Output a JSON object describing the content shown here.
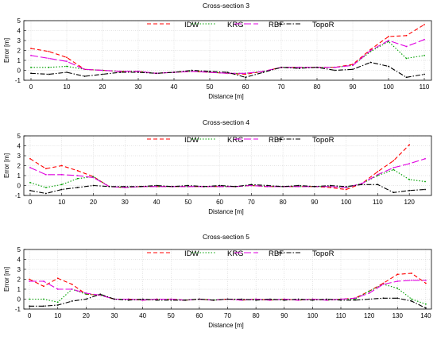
{
  "chart_data": [
    {
      "type": "line",
      "title": "Cross-section 3",
      "xlabel": "Distance [m]",
      "ylabel": "Error [m]",
      "xlim": [
        -2,
        112
      ],
      "ylim": [
        -1,
        5
      ],
      "xticks": [
        0,
        10,
        20,
        30,
        40,
        50,
        60,
        70,
        80,
        90,
        100,
        110
      ],
      "yticks": [
        -1,
        0,
        1,
        2,
        3,
        4,
        5
      ],
      "grid": true,
      "legend": "top-center",
      "x": [
        0,
        5,
        10,
        15,
        20,
        25,
        30,
        35,
        40,
        45,
        50,
        55,
        60,
        65,
        70,
        75,
        80,
        85,
        90,
        95,
        100,
        105,
        110
      ],
      "series": [
        {
          "name": "IDW",
          "color": "#ff0000",
          "dash": "5,3",
          "values": [
            2.2,
            1.9,
            1.3,
            0.1,
            0.0,
            -0.1,
            -0.1,
            -0.3,
            -0.2,
            -0.1,
            -0.2,
            -0.3,
            -0.4,
            -0.1,
            0.3,
            0.3,
            0.3,
            0.3,
            0.6,
            2.1,
            3.4,
            3.5,
            4.6
          ]
        },
        {
          "name": "KRG",
          "color": "#00a000",
          "dash": "1.5,2",
          "values": [
            0.3,
            0.3,
            0.4,
            0.1,
            0.0,
            -0.1,
            -0.1,
            -0.3,
            -0.2,
            -0.1,
            -0.2,
            -0.3,
            -0.3,
            -0.1,
            0.3,
            0.3,
            0.3,
            0.3,
            0.5,
            1.9,
            2.9,
            1.2,
            1.5
          ]
        },
        {
          "name": "RBF",
          "color": "#e000e0",
          "dash": "9,3",
          "values": [
            1.5,
            1.2,
            0.9,
            0.1,
            0.0,
            -0.1,
            -0.1,
            -0.3,
            -0.2,
            -0.1,
            -0.2,
            -0.3,
            -0.3,
            -0.1,
            0.3,
            0.3,
            0.3,
            0.3,
            0.5,
            2.0,
            3.0,
            2.4,
            3.1
          ]
        },
        {
          "name": "TopoR",
          "color": "#000000",
          "dash": "6,2,1.5,2",
          "values": [
            -0.3,
            -0.4,
            -0.2,
            -0.6,
            -0.4,
            -0.2,
            -0.2,
            -0.3,
            -0.2,
            0.0,
            -0.1,
            -0.2,
            -0.7,
            -0.2,
            0.3,
            0.2,
            0.3,
            0.0,
            0.1,
            0.8,
            0.4,
            -0.7,
            -0.4
          ]
        }
      ]
    },
    {
      "type": "line",
      "title": "Cross-section 4",
      "xlabel": "Distance [m]",
      "ylabel": "Error [m]",
      "xlim": [
        -2,
        127
      ],
      "ylim": [
        -1,
        5
      ],
      "xticks": [
        0,
        10,
        20,
        30,
        40,
        50,
        60,
        70,
        80,
        90,
        100,
        110,
        120
      ],
      "yticks": [
        -1,
        0,
        1,
        2,
        3,
        4,
        5
      ],
      "grid": true,
      "legend": "top-center",
      "x": [
        0,
        5,
        10,
        15,
        20,
        25,
        30,
        35,
        40,
        45,
        50,
        55,
        60,
        65,
        70,
        75,
        80,
        85,
        90,
        95,
        100,
        105,
        110,
        115,
        120,
        125
      ],
      "series": [
        {
          "name": "IDW",
          "color": "#ff0000",
          "dash": "5,3",
          "values": [
            2.7,
            1.7,
            2.0,
            1.5,
            0.9,
            -0.1,
            -0.2,
            -0.1,
            -0.1,
            -0.1,
            -0.1,
            -0.1,
            -0.1,
            -0.1,
            0.0,
            -0.1,
            -0.1,
            -0.1,
            -0.1,
            -0.2,
            -0.4,
            0.2,
            1.4,
            2.5,
            4.1,
            null
          ]
        },
        {
          "name": "KRG",
          "color": "#00a000",
          "dash": "1.5,2",
          "values": [
            0.3,
            -0.2,
            0.1,
            0.7,
            0.9,
            -0.1,
            -0.2,
            -0.1,
            -0.1,
            -0.1,
            -0.1,
            -0.1,
            -0.1,
            -0.1,
            0.0,
            -0.1,
            -0.1,
            -0.1,
            -0.1,
            -0.1,
            -0.2,
            0.2,
            1.0,
            1.6,
            0.6,
            0.4
          ]
        },
        {
          "name": "RBF",
          "color": "#e000e0",
          "dash": "9,3",
          "values": [
            1.8,
            1.1,
            1.1,
            1.0,
            0.8,
            -0.1,
            -0.2,
            -0.1,
            -0.1,
            -0.1,
            -0.1,
            -0.1,
            -0.1,
            -0.1,
            0.0,
            -0.1,
            -0.1,
            -0.1,
            -0.1,
            -0.1,
            -0.2,
            0.2,
            1.1,
            1.8,
            2.2,
            2.7
          ]
        },
        {
          "name": "TopoR",
          "color": "#000000",
          "dash": "6,2,1.5,2",
          "values": [
            -0.5,
            -0.8,
            -0.4,
            -0.2,
            0.0,
            -0.1,
            -0.1,
            -0.1,
            0.0,
            -0.1,
            0.0,
            -0.1,
            0.0,
            -0.1,
            0.1,
            0.0,
            -0.1,
            0.0,
            -0.1,
            0.0,
            -0.1,
            0.1,
            0.1,
            -0.7,
            -0.5,
            -0.4
          ]
        }
      ]
    },
    {
      "type": "line",
      "title": "Cross-section 5",
      "xlabel": "Distance [m]",
      "ylabel": "Error [m]",
      "xlim": [
        -2,
        142
      ],
      "ylim": [
        -1,
        5
      ],
      "xticks": [
        0,
        10,
        20,
        30,
        40,
        50,
        60,
        70,
        80,
        90,
        100,
        110,
        120,
        130,
        140
      ],
      "yticks": [
        -1,
        0,
        1,
        2,
        3,
        4,
        5
      ],
      "grid": true,
      "legend": "top-center",
      "x": [
        0,
        5,
        10,
        15,
        20,
        25,
        30,
        35,
        40,
        45,
        50,
        55,
        60,
        65,
        70,
        75,
        80,
        85,
        90,
        95,
        100,
        105,
        110,
        115,
        120,
        125,
        130,
        135,
        140
      ],
      "series": [
        {
          "name": "IDW",
          "color": "#ff0000",
          "dash": "5,3",
          "values": [
            2.0,
            1.3,
            2.1,
            1.5,
            0.5,
            0.4,
            0.0,
            0.0,
            -0.1,
            0.0,
            0.0,
            -0.1,
            0.0,
            -0.1,
            0.0,
            -0.1,
            0.0,
            -0.1,
            0.0,
            -0.1,
            0.0,
            -0.1,
            0.0,
            0.1,
            0.8,
            1.6,
            2.5,
            2.6,
            1.6
          ]
        },
        {
          "name": "KRG",
          "color": "#00a000",
          "dash": "1.5,2",
          "values": [
            0.0,
            0.0,
            -0.3,
            1.0,
            0.5,
            0.4,
            0.0,
            0.0,
            -0.1,
            0.0,
            0.0,
            -0.1,
            0.0,
            -0.1,
            0.0,
            -0.1,
            0.0,
            -0.1,
            0.0,
            -0.1,
            0.0,
            -0.1,
            0.0,
            0.0,
            0.8,
            1.5,
            1.1,
            0.0,
            -0.5
          ]
        },
        {
          "name": "RBF",
          "color": "#e000e0",
          "dash": "9,3",
          "values": [
            1.8,
            1.8,
            1.0,
            1.0,
            0.6,
            0.4,
            0.0,
            0.0,
            -0.1,
            0.0,
            0.0,
            -0.1,
            0.0,
            -0.1,
            0.0,
            -0.1,
            0.0,
            -0.1,
            0.0,
            -0.1,
            0.0,
            -0.1,
            0.0,
            0.1,
            0.6,
            1.5,
            1.8,
            1.9,
            1.9
          ]
        },
        {
          "name": "TopoR",
          "color": "#000000",
          "dash": "6,2,1.5,2",
          "values": [
            -0.7,
            -0.7,
            -0.6,
            -0.2,
            0.0,
            0.5,
            0.0,
            -0.1,
            0.0,
            -0.1,
            -0.1,
            -0.1,
            0.0,
            -0.1,
            0.0,
            0.0,
            -0.1,
            0.0,
            -0.1,
            0.0,
            -0.1,
            0.0,
            -0.1,
            -0.1,
            0.0,
            0.1,
            0.1,
            -0.2,
            -0.9
          ]
        }
      ]
    }
  ]
}
